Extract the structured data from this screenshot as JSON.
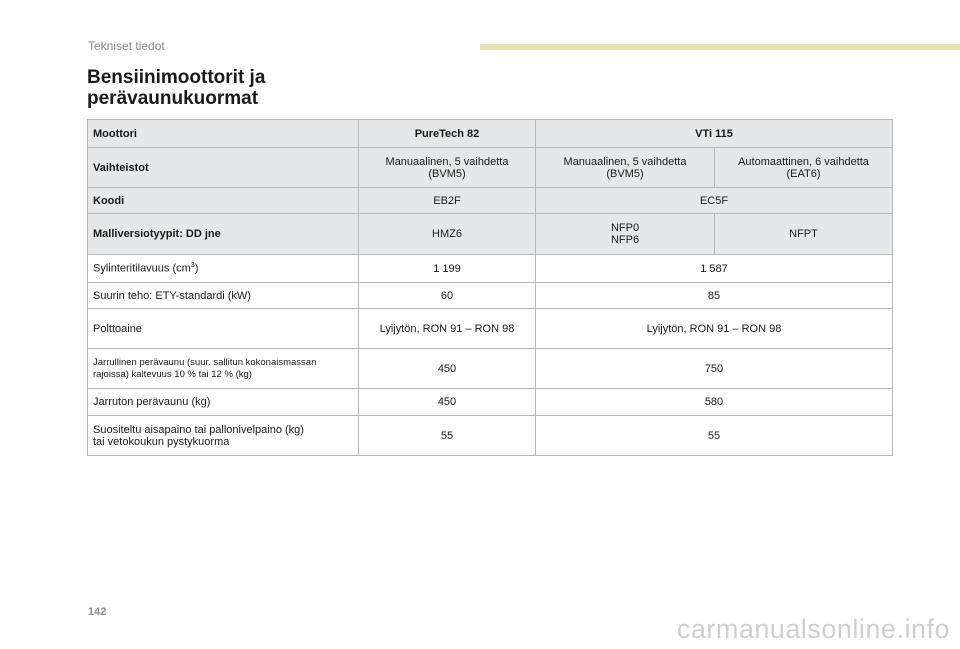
{
  "header": {
    "section": "Tekniset tiedot",
    "title_line1": "Bensiinimoottorit ja",
    "title_line2": "perävaunukuormat"
  },
  "table": {
    "engine": {
      "label": "Moottori",
      "v1": "PureTech 82",
      "v2": "VTi 115"
    },
    "gearbox": {
      "label": "Vaihteistot",
      "v1a": "Manuaalinen, 5 vaihdetta",
      "v1b": "(BVM5)",
      "v2a": "Manuaalinen, 5 vaihdetta",
      "v2b": "(BVM5)",
      "v3a": "Automaattinen, 6 vaihdetta",
      "v3b": "(EAT6)"
    },
    "code": {
      "label": "Koodi",
      "v1": "EB2F",
      "v2": "EC5F"
    },
    "models": {
      "label": "Malliversiotyypit: DD jne",
      "v1": "HMZ6",
      "v2a": "NFP0",
      "v2b": "NFP6",
      "v3": "NFPT"
    },
    "displacement": {
      "label_prefix": "Sylinteritilavuus (cm",
      "label_sup": "3",
      "label_suffix": ")",
      "v1": "1 199",
      "v2": "1 587"
    },
    "power": {
      "label": "Suurin teho: ETY-standardi (kW)",
      "v1": "60",
      "v2": "85"
    },
    "fuel": {
      "label": "Polttoaine",
      "v1": "Lyijytön, RON 91 – RON 98",
      "v2": "Lyijytön, RON 91 – RON 98"
    },
    "braked_trailer": {
      "label1": "Jarrullinen perävaunu (suur. sallitun kokonaismassan",
      "label2": "rajoissa) kaltevuus 10 % tai 12 % (kg)",
      "v1": "450",
      "v2": "750"
    },
    "unbraked_trailer": {
      "label": "Jarruton perävaunu (kg)",
      "v1": "450",
      "v2": "580"
    },
    "nose_weight": {
      "label1": "Suositeltu aisapaino tai pallonivelpaino (kg)",
      "label2": "tai vetokoukun pystykuorma",
      "v1": "55",
      "v2": "55"
    }
  },
  "footer": {
    "page_number": "142",
    "watermark": "carmanualsonline.info"
  },
  "colors": {
    "header_row_bg": "#e6e7e8",
    "accent_bar": "#e6e3b0",
    "border": "#b7b7b7"
  }
}
